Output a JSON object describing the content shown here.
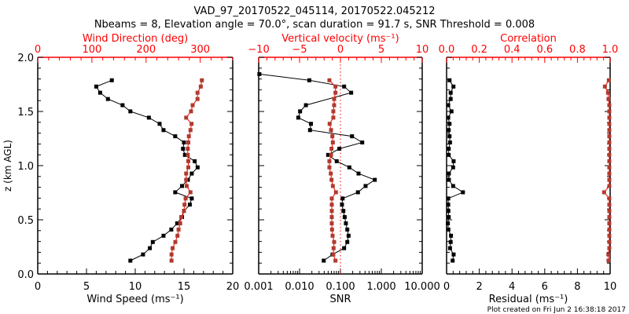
{
  "chart_data": [
    {
      "type": "line",
      "panel": "left",
      "title_line1": "VAD_97_20170522_045114, 20170522.045212",
      "title_line2": "Nbeams = 8, Elevation angle = 70.0°, scan duration = 91.7 s, SNR Threshold = 0.008",
      "ylabel": "z (km AGL)",
      "ylim": [
        0,
        2
      ],
      "yticks": [
        "0.0",
        "0.5",
        "1.0",
        "1.5",
        "2.0"
      ],
      "bottom_axis": {
        "label": "Wind Speed (ms⁻¹)",
        "range": [
          0,
          20
        ],
        "ticks": [
          "0",
          "5",
          "10",
          "15",
          "20"
        ],
        "color": "#000000"
      },
      "top_axis": {
        "label": "Wind Direction (deg)",
        "range": [
          0,
          360
        ],
        "ticks": [
          "0",
          "100",
          "200",
          "300"
        ],
        "color": "#ff0000"
      },
      "z": [
        0.123,
        0.18,
        0.238,
        0.295,
        0.353,
        0.41,
        0.467,
        0.525,
        0.582,
        0.64,
        0.697,
        0.754,
        0.812,
        0.869,
        0.927,
        0.984,
        1.041,
        1.099,
        1.156,
        1.214,
        1.271,
        1.328,
        1.386,
        1.443,
        1.501,
        1.558,
        1.615,
        1.673,
        1.73,
        1.788,
        1.845
      ],
      "series": [
        {
          "name": "Wind Speed",
          "axis": "bottom",
          "color": "#000000",
          "values": [
            9.5,
            10.8,
            11.5,
            11.8,
            12.9,
            13.7,
            14.3,
            14.8,
            15.0,
            15.6,
            15.8,
            14.1,
            14.8,
            15.4,
            15.8,
            16.4,
            16.1,
            15.1,
            14.9,
            15.0,
            14.1,
            12.9,
            12.5,
            11.4,
            9.5,
            8.7,
            7.2,
            6.4,
            6.0,
            7.6,
            null
          ]
        },
        {
          "name": "Wind Direction",
          "axis": "top",
          "color": "#b03a2e",
          "values": [
            247,
            247,
            249,
            254,
            258,
            260,
            263,
            265,
            270,
            271,
            273,
            282,
            275,
            274,
            274,
            278,
            278,
            277,
            277,
            278,
            279,
            282,
            284,
            274,
            283,
            286,
            295,
            295,
            301,
            303,
            null
          ]
        }
      ]
    },
    {
      "type": "line",
      "panel": "middle",
      "ylim": [
        0,
        2
      ],
      "bottom_axis": {
        "label": "SNR",
        "scale": "log",
        "range": [
          0.001,
          10
        ],
        "ticks": [
          "0.001",
          "0.010",
          "0.100",
          "1.000",
          "10.000"
        ],
        "color": "#000000"
      },
      "top_axis": {
        "label": "Vertical velocity (ms⁻¹)",
        "range": [
          -10,
          10
        ],
        "ticks": [
          "−10",
          "−5",
          "0",
          "5",
          "10"
        ],
        "color": "#ff0000"
      },
      "reference_line": {
        "axis": "top",
        "value": 0,
        "style": "dotted",
        "color": "#ff0000"
      },
      "series": [
        {
          "name": "SNR",
          "axis": "bottom",
          "color": "#000000",
          "values": [
            0.039,
            0.064,
            0.123,
            0.147,
            0.158,
            0.147,
            0.136,
            0.127,
            0.118,
            0.109,
            0.113,
            0.268,
            0.412,
            0.692,
            0.277,
            0.165,
            0.081,
            0.05,
            0.094,
            0.341,
            0.192,
            0.018,
            0.019,
            0.0093,
            0.0103,
            0.0143,
            null,
            0.183,
            0.123,
            0.0173,
            0.00104
          ]
        },
        {
          "name": "Vertical velocity",
          "axis": "top",
          "color": "#b03a2e",
          "values": [
            -0.61,
            -0.87,
            -0.84,
            -0.77,
            -0.96,
            -1.03,
            -1.06,
            -1.06,
            -1.06,
            -1.06,
            -1.06,
            -0.55,
            -0.93,
            -1.09,
            -1.18,
            -1.35,
            -1.35,
            -1.15,
            -1.09,
            -0.93,
            -0.99,
            -1.15,
            -1.32,
            -0.87,
            -0.87,
            -0.77,
            -0.77,
            -0.61,
            -0.61,
            -1.35,
            null
          ]
        }
      ]
    },
    {
      "type": "line",
      "panel": "right",
      "ylim": [
        0,
        2
      ],
      "bottom_axis": {
        "label": "Residual (ms⁻¹)",
        "range": [
          0,
          10
        ],
        "ticks": [
          "0",
          "2",
          "4",
          "6",
          "8",
          "10"
        ],
        "color": "#000000"
      },
      "top_axis": {
        "label": "Correlation",
        "range": [
          0,
          1
        ],
        "ticks": [
          "0.0",
          "0.2",
          "0.4",
          "0.6",
          "0.8",
          "1.0"
        ],
        "color": "#ff0000"
      },
      "series": [
        {
          "name": "Residual",
          "axis": "bottom",
          "color": "#000000",
          "values": [
            0.37,
            0.43,
            0.21,
            0.25,
            0.27,
            0.11,
            0.08,
            0.13,
            0.11,
            0.1,
            0.1,
            1.0,
            0.4,
            0.14,
            0.14,
            0.4,
            0.43,
            0.13,
            0.13,
            0.21,
            0.18,
            0.13,
            0.18,
            0.1,
            0.3,
            0.1,
            0.25,
            0.25,
            0.42,
            0.18,
            null
          ]
        },
        {
          "name": "Correlation",
          "axis": "top",
          "color": "#b03a2e",
          "values": [
            0.99,
            0.989,
            0.995,
            0.995,
            0.995,
            0.995,
            0.995,
            0.995,
            0.995,
            0.995,
            0.995,
            0.963,
            0.995,
            0.995,
            0.995,
            0.995,
            0.995,
            0.995,
            0.995,
            0.995,
            0.995,
            0.995,
            0.995,
            0.995,
            0.995,
            0.995,
            0.99,
            0.987,
            0.968,
            0.992,
            null
          ]
        }
      ]
    }
  ],
  "footer": {
    "created": "Plot created on Fri Jun  2 16:38:18 2017"
  }
}
